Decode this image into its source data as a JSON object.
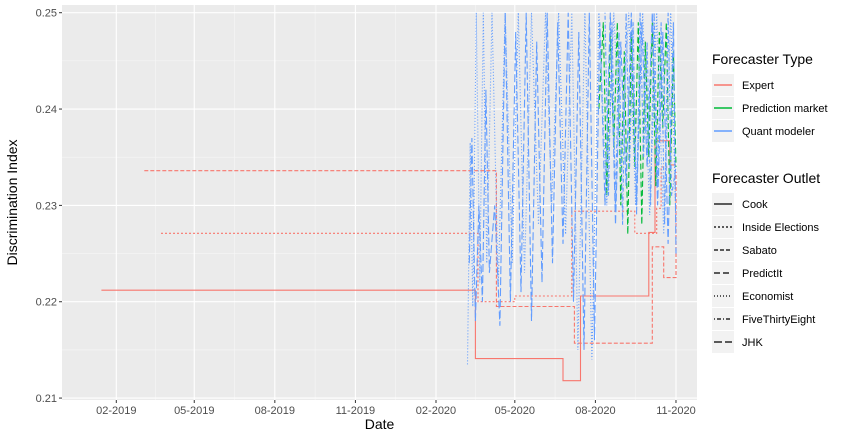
{
  "chart_data": {
    "type": "line",
    "title": "",
    "xlabel": "Date",
    "ylabel": "Discrimination Index",
    "xlim": [
      "2018-12-01",
      "2020-11-25"
    ],
    "ylim": [
      0.2098,
      0.2508
    ],
    "grid": true,
    "x_ticks": [
      "2019-02-01",
      "2019-05-01",
      "2019-08-01",
      "2019-11-01",
      "2020-02-01",
      "2020-05-01",
      "2020-08-01",
      "2020-11-01"
    ],
    "x_tick_labels": [
      "02-2019",
      "05-2019",
      "08-2019",
      "11-2019",
      "02-2020",
      "05-2020",
      "08-2020",
      "11-2020"
    ],
    "y_ticks": [
      0.21,
      0.22,
      0.23,
      0.24,
      0.25
    ],
    "y_tick_labels": [
      "0.21",
      "0.22",
      "0.23",
      "0.24",
      "0.25"
    ],
    "colors": {
      "Expert": "#F8766D",
      "Prediction market": "#00BA38",
      "Quant modeler": "#619CFF"
    },
    "legend_placement": "right",
    "legends": [
      {
        "title": "Forecaster Type",
        "entries": [
          "Expert",
          "Prediction market",
          "Quant modeler"
        ]
      },
      {
        "title": "Forecaster Outlet",
        "entries": [
          "Cook",
          "Inside Elections",
          "Sabato",
          "PredictIt",
          "Economist",
          "FiveThirtyEight",
          "JHK"
        ]
      }
    ],
    "series": [
      {
        "type": "Expert",
        "outlet": "Cook",
        "step": true,
        "x": [
          "2019-01-15",
          "2020-03-15",
          "2020-03-17",
          "2020-04-02",
          "2020-05-05",
          "2020-06-25",
          "2020-07-15",
          "2020-09-20",
          "2020-10-01",
          "2020-10-08",
          "2020-10-25",
          "2020-11-01"
        ],
        "y": [
          0.2212,
          0.2212,
          0.2141,
          0.2141,
          0.2141,
          0.2118,
          0.2206,
          0.2206,
          0.2272,
          0.2367,
          0.2342,
          0.2342
        ]
      },
      {
        "type": "Expert",
        "outlet": "Inside Elections",
        "step": true,
        "x": [
          "2019-03-24",
          "2020-03-14",
          "2020-03-20",
          "2020-05-01",
          "2020-06-20",
          "2020-07-05",
          "2020-09-15",
          "2020-10-10",
          "2020-10-15",
          "2020-10-22"
        ],
        "y": [
          0.2271,
          0.2271,
          0.22,
          0.2206,
          0.2206,
          0.2294,
          0.2271,
          0.2297,
          0.234,
          0.234
        ]
      },
      {
        "type": "Expert",
        "outlet": "Sabato",
        "step": true,
        "x": [
          "2019-03-05",
          "2020-04-05",
          "2020-04-10",
          "2020-06-25",
          "2020-07-08",
          "2020-09-28",
          "2020-10-05",
          "2020-10-18",
          "2020-11-01"
        ],
        "y": [
          0.2336,
          0.2336,
          0.2195,
          0.2195,
          0.2157,
          0.2157,
          0.2257,
          0.2225,
          0.2335
        ]
      },
      {
        "type": "Prediction market",
        "outlet": "PredictIt",
        "x": [
          "2020-08-05",
          "2020-08-10",
          "2020-08-14",
          "2020-08-18",
          "2020-08-22",
          "2020-08-26",
          "2020-08-30",
          "2020-09-03",
          "2020-09-07",
          "2020-09-11",
          "2020-09-15",
          "2020-09-19",
          "2020-09-23",
          "2020-09-27",
          "2020-10-01",
          "2020-10-05",
          "2020-10-09",
          "2020-10-13",
          "2020-10-17",
          "2020-10-21",
          "2020-10-25",
          "2020-10-29",
          "2020-11-01"
        ],
        "y": [
          0.24,
          0.249,
          0.231,
          0.248,
          0.236,
          0.249,
          0.23,
          0.246,
          0.227,
          0.248,
          0.234,
          0.249,
          0.228,
          0.247,
          0.235,
          0.249,
          0.232,
          0.248,
          0.238,
          0.249,
          0.23,
          0.246,
          0.234
        ]
      },
      {
        "type": "Quant modeler",
        "outlet": "Economist",
        "x": [
          "2020-03-08",
          "2020-03-11",
          "2020-03-14",
          "2020-03-18",
          "2020-03-22",
          "2020-03-26",
          "2020-03-30",
          "2020-04-05",
          "2020-04-12",
          "2020-04-20",
          "2020-04-28",
          "2020-05-05",
          "2020-05-12",
          "2020-05-20",
          "2020-05-28",
          "2020-06-05",
          "2020-06-12",
          "2020-06-20",
          "2020-06-28",
          "2020-07-05",
          "2020-07-12",
          "2020-07-20",
          "2020-07-28",
          "2020-08-05",
          "2020-08-14",
          "2020-08-22",
          "2020-08-30",
          "2020-09-08",
          "2020-09-16",
          "2020-09-24",
          "2020-10-02",
          "2020-10-10",
          "2020-10-18",
          "2020-10-26",
          "2020-11-01"
        ],
        "y": [
          0.2135,
          0.2365,
          0.2195,
          0.25,
          0.222,
          0.25,
          0.224,
          0.25,
          0.2215,
          0.25,
          0.224,
          0.25,
          0.223,
          0.25,
          0.228,
          0.25,
          0.23,
          0.25,
          0.227,
          0.25,
          0.215,
          0.25,
          0.214,
          0.25,
          0.23,
          0.25,
          0.234,
          0.25,
          0.23,
          0.25,
          0.229,
          0.25,
          0.227,
          0.25,
          0.228
        ]
      },
      {
        "type": "Quant modeler",
        "outlet": "FiveThirtyEight",
        "x": [
          "2020-08-12",
          "2020-08-16",
          "2020-08-20",
          "2020-08-24",
          "2020-08-28",
          "2020-09-01",
          "2020-09-05",
          "2020-09-09",
          "2020-09-13",
          "2020-09-17",
          "2020-09-21",
          "2020-09-25",
          "2020-09-29",
          "2020-10-03",
          "2020-10-07",
          "2020-10-11",
          "2020-10-15",
          "2020-10-19",
          "2020-10-23",
          "2020-10-27",
          "2020-11-01"
        ],
        "y": [
          0.25,
          0.231,
          0.249,
          0.23,
          0.248,
          0.228,
          0.25,
          0.234,
          0.249,
          0.229,
          0.25,
          0.235,
          0.247,
          0.23,
          0.25,
          0.232,
          0.249,
          0.228,
          0.25,
          0.231,
          0.234
        ]
      },
      {
        "type": "Quant modeler",
        "outlet": "JHK",
        "x": [
          "2020-03-10",
          "2020-03-13",
          "2020-03-17",
          "2020-03-21",
          "2020-03-25",
          "2020-03-29",
          "2020-04-02",
          "2020-04-08",
          "2020-04-14",
          "2020-04-20",
          "2020-04-26",
          "2020-05-02",
          "2020-05-08",
          "2020-05-14",
          "2020-05-20",
          "2020-05-26",
          "2020-06-01",
          "2020-06-07",
          "2020-06-13",
          "2020-06-19",
          "2020-06-25",
          "2020-07-01",
          "2020-07-07",
          "2020-07-13",
          "2020-07-19",
          "2020-07-25",
          "2020-07-31",
          "2020-08-06",
          "2020-08-12",
          "2020-08-18",
          "2020-08-24",
          "2020-08-30",
          "2020-09-05",
          "2020-09-11",
          "2020-09-17",
          "2020-09-23",
          "2020-09-29",
          "2020-10-05",
          "2020-10-11",
          "2020-10-17",
          "2020-10-23",
          "2020-10-29",
          "2020-11-01"
        ],
        "y": [
          0.224,
          0.237,
          0.218,
          0.23,
          0.22,
          0.242,
          0.223,
          0.23,
          0.2175,
          0.25,
          0.22,
          0.248,
          0.221,
          0.25,
          0.218,
          0.247,
          0.222,
          0.25,
          0.224,
          0.249,
          0.226,
          0.25,
          0.22,
          0.248,
          0.215,
          0.25,
          0.216,
          0.249,
          0.23,
          0.25,
          0.228,
          0.247,
          0.232,
          0.25,
          0.23,
          0.249,
          0.234,
          0.25,
          0.23,
          0.248,
          0.226,
          0.249,
          0.225
        ]
      }
    ]
  }
}
